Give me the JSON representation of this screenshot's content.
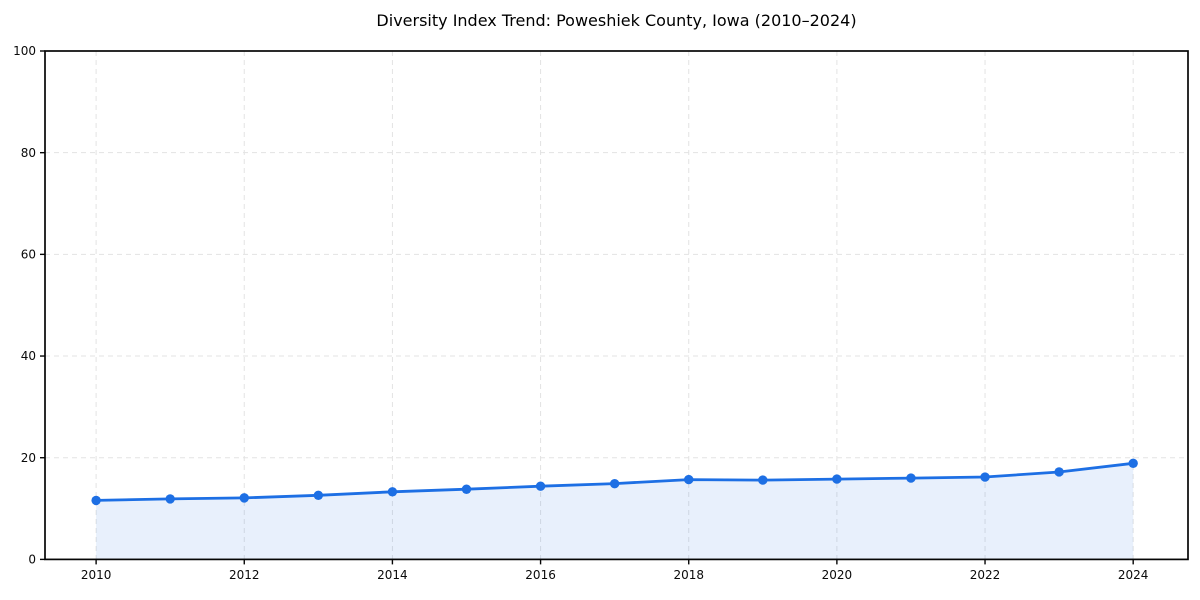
{
  "chart_data": {
    "type": "line",
    "title": "Diversity Index Trend: Poweshiek County, Iowa (2010–2024)",
    "xlabel": "",
    "ylabel": "",
    "x": [
      2010,
      2011,
      2012,
      2013,
      2014,
      2015,
      2016,
      2017,
      2018,
      2019,
      2020,
      2021,
      2022,
      2023,
      2024
    ],
    "series": [
      {
        "name": "Diversity Index",
        "values": [
          11.6,
          11.9,
          12.1,
          12.6,
          13.3,
          13.8,
          14.4,
          14.9,
          15.7,
          15.6,
          15.8,
          16.0,
          16.2,
          17.2,
          18.9
        ]
      }
    ],
    "xlim": [
      2009.31,
      2024.74
    ],
    "ylim": [
      0,
      100
    ],
    "x_ticks": [
      2010,
      2012,
      2014,
      2016,
      2018,
      2020,
      2022,
      2024
    ],
    "y_ticks": [
      0,
      20,
      40,
      60,
      80,
      100
    ],
    "grid": true,
    "grid_style": "dashed",
    "legend_position": "none",
    "line_color": "#1d6fe4",
    "marker": "circle",
    "marker_color": "#1d6fe4",
    "fill_area": true,
    "fill_color": "#1d6fe4",
    "fill_opacity": 0.1,
    "background": "#ffffff"
  }
}
